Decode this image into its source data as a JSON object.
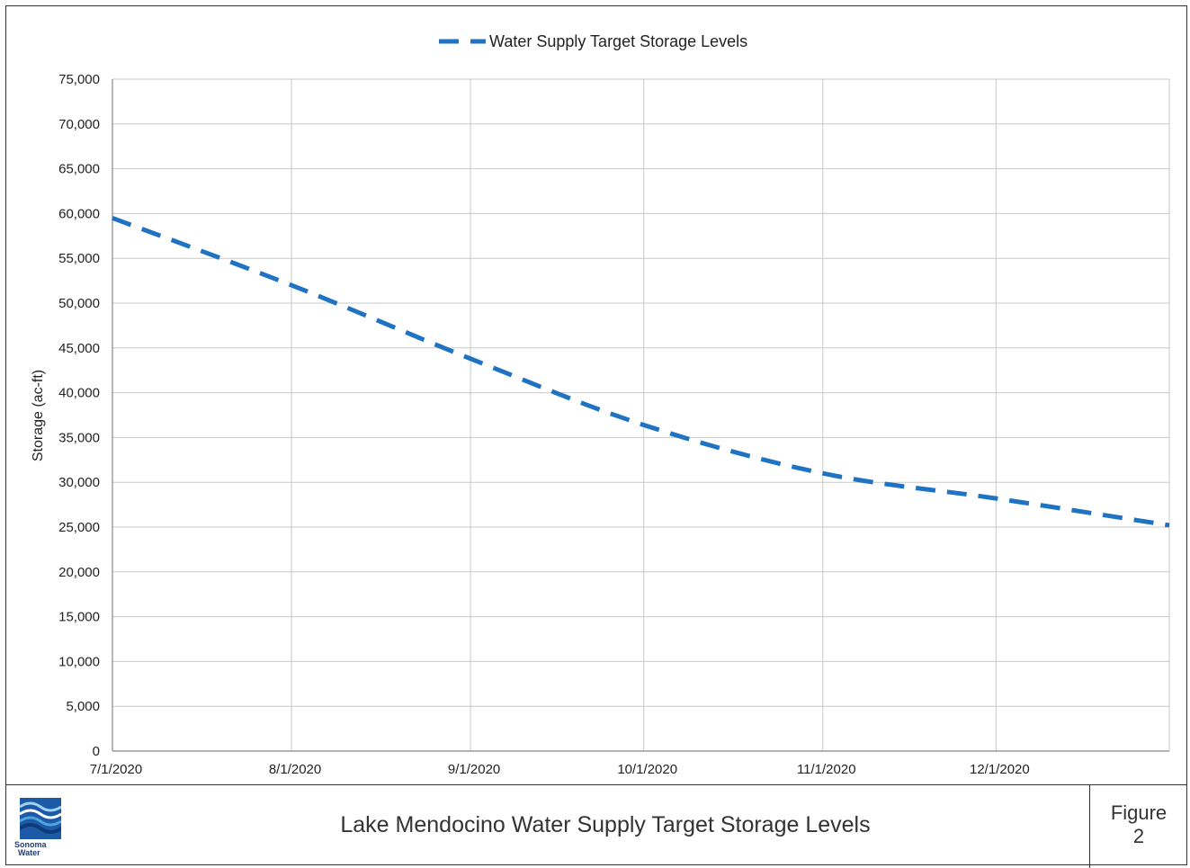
{
  "chart_data": {
    "type": "line",
    "title": "Lake Mendocino Water Supply Target Storage Levels",
    "ylabel": "Storage (ac-ft)",
    "xlabel": "",
    "x_tick_labels": [
      "7/1/2020",
      "8/1/2020",
      "9/1/2020",
      "10/1/2020",
      "11/1/2020",
      "12/1/2020"
    ],
    "y_tick_labels": [
      "0",
      "5,000",
      "10,000",
      "15,000",
      "20,000",
      "25,000",
      "30,000",
      "35,000",
      "40,000",
      "45,000",
      "50,000",
      "55,000",
      "60,000",
      "65,000",
      "70,000",
      "75,000"
    ],
    "ylim": [
      0,
      75000
    ],
    "xlim": [
      "2020-07-01",
      "2020-12-31"
    ],
    "grid": true,
    "legend_position": "top-center",
    "series": [
      {
        "name": "Water Supply Target Storage Levels",
        "color": "#1f73c2",
        "line_style": "dashed",
        "x": [
          "2020-07-01",
          "2020-08-01",
          "2020-09-01",
          "2020-10-01",
          "2020-11-01",
          "2020-12-01",
          "2020-12-31"
        ],
        "y": [
          59500,
          52000,
          43800,
          36400,
          31000,
          28200,
          25200
        ]
      }
    ]
  },
  "footer": {
    "title": "Lake Mendocino Water Supply Target Storage Levels",
    "figure_label": "Figure",
    "figure_number": "2",
    "logo_text_line1": "Sonoma",
    "logo_text_line2": "Water"
  }
}
